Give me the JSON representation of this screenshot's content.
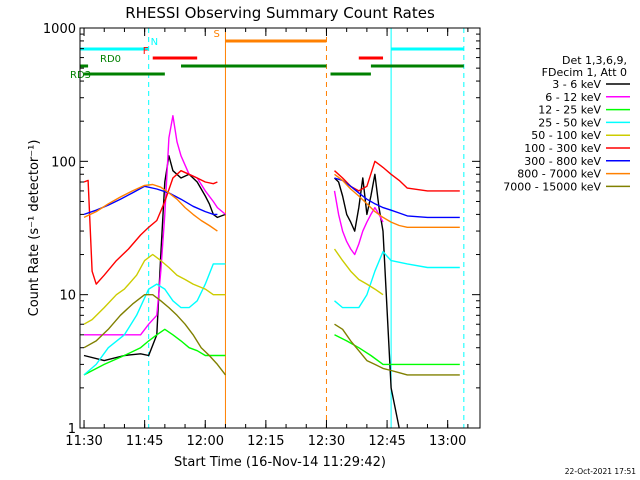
{
  "chart_data": {
    "type": "line",
    "title": "RHESSI Observing Summary Count Rates",
    "xlabel": "Start Time (16-Nov-14 11:29:42)",
    "ylabel": "Count Rate (s⁻¹ detector⁻¹)",
    "y_scale": "log",
    "ylim": [
      1,
      1000
    ],
    "xlim": [
      "11:29",
      "13:08"
    ],
    "x_ticks": [
      "11:30",
      "11:45",
      "12:00",
      "12:15",
      "12:30",
      "12:45",
      "13:00"
    ],
    "y_ticks": [
      "1",
      "10",
      "100",
      "1000"
    ],
    "legend_header": [
      "Det 1,3,6,9,",
      "FDecim 1, Att 0"
    ],
    "legend_placement": "right",
    "timestamp": "22-Oct-2021 17:51",
    "data_gap": [
      "12:05",
      "12:32"
    ],
    "series": [
      {
        "name": "3 - 6 keV",
        "color": "#000000",
        "x": [
          "11:30",
          "11:35",
          "11:40",
          "11:44",
          "11:46",
          "11:48",
          "11:49",
          "11:50",
          "11:51",
          "11:52",
          "11:54",
          "11:56",
          "11:58",
          "12:00",
          "12:01",
          "12:02",
          "12:03",
          "12:05",
          "12:32",
          "12:33",
          "12:34",
          "12:35",
          "12:36",
          "12:37",
          "12:38",
          "12:39",
          "12:40",
          "12:41",
          "12:42",
          "12:43",
          "12:44",
          "12:46",
          "12:48"
        ],
        "y": [
          3.5,
          3.2,
          3.5,
          3.6,
          3.5,
          5,
          20,
          70,
          110,
          85,
          75,
          80,
          70,
          55,
          48,
          40,
          38,
          40,
          75,
          70,
          55,
          40,
          35,
          30,
          45,
          75,
          40,
          55,
          80,
          45,
          30,
          2,
          1
        ]
      },
      {
        "name": "6 - 12 keV",
        "color": "#ff00ff",
        "x": [
          "11:30",
          "11:35",
          "11:40",
          "11:44",
          "11:46",
          "11:48",
          "11:49",
          "11:50",
          "11:51",
          "11:52",
          "11:53",
          "11:54",
          "11:56",
          "11:58",
          "12:00",
          "12:02",
          "12:03",
          "12:05",
          "12:32",
          "12:33",
          "12:34",
          "12:35",
          "12:36",
          "12:37",
          "12:38",
          "12:39",
          "12:40",
          "12:41",
          "12:42",
          "12:43",
          "12:44"
        ],
        "y": [
          5,
          5,
          5,
          5,
          6,
          7,
          15,
          40,
          150,
          220,
          140,
          110,
          80,
          75,
          60,
          50,
          45,
          40,
          60,
          40,
          30,
          25,
          22,
          20,
          24,
          30,
          35,
          40,
          45,
          40,
          35
        ]
      },
      {
        "name": "12 - 25 keV",
        "color": "#00ff00",
        "x": [
          "11:30",
          "11:35",
          "11:40",
          "11:44",
          "11:46",
          "11:48",
          "11:50",
          "11:52",
          "11:54",
          "11:56",
          "11:58",
          "12:00",
          "12:02",
          "12:05",
          "12:32",
          "12:35",
          "12:38",
          "12:41",
          "12:44",
          "12:47",
          "12:50",
          "12:55",
          "13:00",
          "13:03"
        ],
        "y": [
          2.5,
          3,
          3.5,
          4,
          4.5,
          5,
          5.5,
          5,
          4.5,
          4,
          3.8,
          3.5,
          3.5,
          3.5,
          5,
          4.5,
          4,
          3.5,
          3,
          3,
          3,
          3,
          3,
          3
        ]
      },
      {
        "name": "25 - 50 keV",
        "color": "#00ffff",
        "x": [
          "11:30",
          "11:33",
          "11:36",
          "11:40",
          "11:43",
          "11:46",
          "11:48",
          "11:50",
          "11:52",
          "11:54",
          "11:56",
          "11:58",
          "12:00",
          "12:02",
          "12:05",
          "12:32",
          "12:34",
          "12:36",
          "12:38",
          "12:40",
          "12:42",
          "12:44",
          "12:46",
          "12:50",
          "12:55",
          "13:00",
          "13:03"
        ],
        "y": [
          2.5,
          3,
          4,
          5,
          7,
          11,
          12,
          11,
          9,
          8,
          8,
          9,
          12,
          17,
          17,
          9,
          8,
          8,
          8,
          10,
          15,
          21,
          18,
          17,
          16,
          16,
          16
        ]
      },
      {
        "name": "50 - 100 keV",
        "color": "#cccc00",
        "x": [
          "11:30",
          "11:32",
          "11:35",
          "11:38",
          "11:40",
          "11:43",
          "11:45",
          "11:47",
          "11:49",
          "11:51",
          "11:53",
          "11:55",
          "11:57",
          "12:00",
          "12:02",
          "12:05",
          "12:32",
          "12:34",
          "12:36",
          "12:38",
          "12:40",
          "12:42",
          "12:44"
        ],
        "y": [
          6,
          6.5,
          8,
          10,
          11,
          14,
          18,
          20,
          18,
          16,
          14,
          13,
          12,
          11,
          10,
          10,
          22,
          18,
          15,
          13,
          12,
          11,
          10
        ]
      },
      {
        "name": "100 - 300 keV",
        "color": "#ff0000",
        "x": [
          "11:30",
          "11:31",
          "11:32",
          "11:33",
          "11:35",
          "11:38",
          "11:41",
          "11:44",
          "11:46",
          "11:48",
          "11:50",
          "11:52",
          "11:54",
          "11:56",
          "11:58",
          "12:00",
          "12:02",
          "12:03",
          "12:32",
          "12:34",
          "12:36",
          "12:38",
          "12:40",
          "12:42",
          "12:44",
          "12:46",
          "12:48",
          "12:50",
          "12:55",
          "13:00",
          "13:03"
        ],
        "y": [
          70,
          72,
          15,
          12,
          14,
          18,
          22,
          28,
          32,
          36,
          50,
          75,
          85,
          80,
          75,
          70,
          68,
          70,
          85,
          75,
          65,
          60,
          65,
          100,
          90,
          80,
          72,
          63,
          60,
          60,
          60
        ]
      },
      {
        "name": "300 - 800 keV",
        "color": "#0000ff",
        "x": [
          "11:30",
          "11:33",
          "11:36",
          "11:39",
          "11:42",
          "11:45",
          "11:48",
          "11:51",
          "11:54",
          "11:57",
          "12:00",
          "12:02",
          "12:03",
          "12:32",
          "12:34",
          "12:36",
          "12:38",
          "12:40",
          "12:42",
          "12:44",
          "12:46",
          "12:48",
          "12:50",
          "12:55",
          "13:00",
          "13:03"
        ],
        "y": [
          40,
          43,
          47,
          52,
          58,
          65,
          62,
          58,
          52,
          46,
          42,
          40,
          40,
          75,
          72,
          65,
          58,
          52,
          48,
          45,
          43,
          41,
          39,
          38,
          38,
          38
        ]
      },
      {
        "name": "800 - 7000 keV",
        "color": "#ff8000",
        "x": [
          "11:30",
          "11:33",
          "11:36",
          "11:39",
          "11:42",
          "11:45",
          "11:47",
          "11:49",
          "11:51",
          "11:53",
          "11:55",
          "11:57",
          "11:59",
          "12:01",
          "12:03",
          "12:32",
          "12:34",
          "12:36",
          "12:38",
          "12:40",
          "12:42",
          "12:44",
          "12:46",
          "12:48",
          "12:50",
          "12:55",
          "13:00",
          "13:03"
        ],
        "y": [
          38,
          42,
          48,
          54,
          60,
          66,
          67,
          64,
          58,
          52,
          45,
          40,
          36,
          33,
          30,
          80,
          72,
          62,
          55,
          48,
          42,
          38,
          35,
          33,
          32,
          32,
          32,
          32
        ]
      },
      {
        "name": "7000 - 15000 keV",
        "color": "#808000",
        "x": [
          "11:30",
          "11:33",
          "11:36",
          "11:39",
          "11:42",
          "11:45",
          "11:47",
          "11:49",
          "11:51",
          "11:53",
          "11:55",
          "11:57",
          "11:59",
          "12:01",
          "12:03",
          "12:05",
          "12:32",
          "12:34",
          "12:36",
          "12:38",
          "12:40",
          "12:42",
          "12:44",
          "12:46",
          "12:48",
          "12:50",
          "12:55",
          "13:00",
          "13:03"
        ],
        "y": [
          4,
          4.5,
          5.5,
          7,
          8.5,
          10,
          10,
          9,
          8,
          7,
          6,
          5,
          4,
          3.5,
          3,
          2.5,
          6,
          5.5,
          4.5,
          3.8,
          3.2,
          3,
          2.8,
          2.7,
          2.6,
          2.5,
          2.5,
          2.5,
          2.5
        ]
      }
    ],
    "flags": [
      {
        "label": "N",
        "color": "#00ffff",
        "segments": [
          [
            "11:29",
            "11:46"
          ],
          [
            "12:46",
            "13:04"
          ]
        ],
        "band": 1
      },
      {
        "label": "S",
        "color": "#ff8000",
        "segments": [
          [
            "12:05",
            "12:30"
          ]
        ],
        "band": 0
      },
      {
        "label": "F",
        "color": "#ff0000",
        "segments": [
          [
            "11:47",
            "11:58"
          ],
          [
            "12:38",
            "12:44"
          ]
        ],
        "band": 2
      },
      {
        "label": "RD0",
        "color": "#008000",
        "segments": [
          [
            "11:29",
            "11:31"
          ],
          [
            "11:54",
            "12:30"
          ],
          [
            "12:41",
            "13:04"
          ]
        ],
        "band": 3
      },
      {
        "label": "RD3",
        "color": "#008000",
        "segments": [
          [
            "11:30",
            "11:50"
          ],
          [
            "12:31",
            "12:41"
          ]
        ],
        "band": 4
      }
    ],
    "vertical_markers": [
      {
        "time": "11:29",
        "color": "#00ffff",
        "style": "solid"
      },
      {
        "time": "11:46",
        "color": "#00ffff",
        "style": "dashed"
      },
      {
        "time": "12:05",
        "color": "#ff8000",
        "style": "solid"
      },
      {
        "time": "12:30",
        "color": "#ff8000",
        "style": "dashed"
      },
      {
        "time": "12:46",
        "color": "#00ffff",
        "style": "solid"
      },
      {
        "time": "13:04",
        "color": "#00ffff",
        "style": "dashed"
      }
    ]
  }
}
